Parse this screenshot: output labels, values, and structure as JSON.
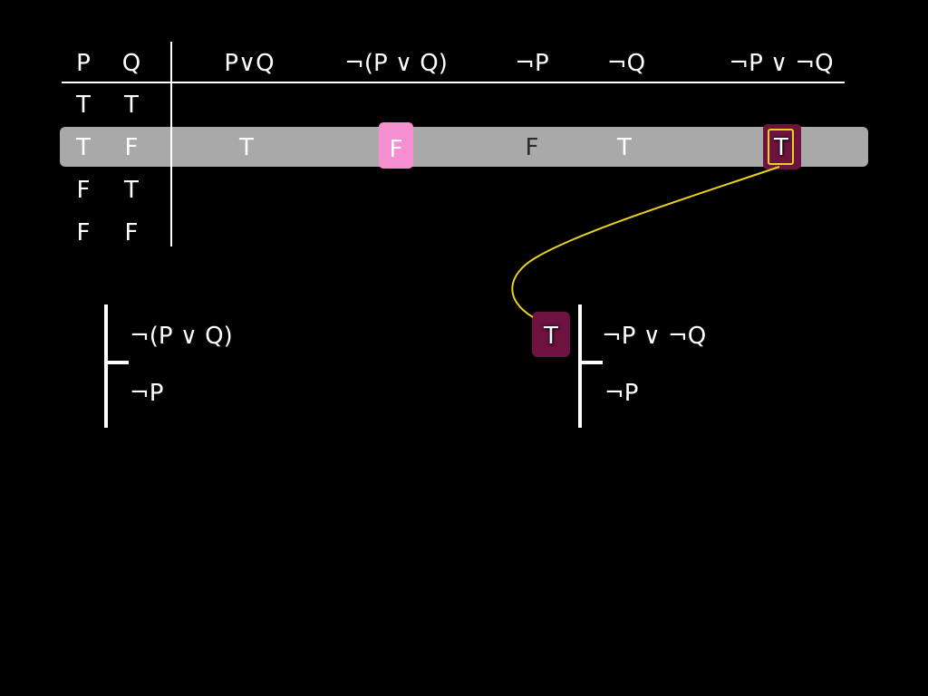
{
  "table": {
    "headers": [
      "P",
      "Q",
      "P∨Q",
      "¬(P ∨ Q)",
      "¬P",
      "¬Q",
      "¬P ∨ ¬Q"
    ],
    "rows": [
      [
        "T",
        "T"
      ],
      [
        "T",
        "F"
      ],
      [
        "F",
        "T"
      ],
      [
        "F",
        "F"
      ]
    ],
    "highlighted_row": {
      "index": 1,
      "values": [
        "T",
        "F",
        "F",
        "T",
        "T"
      ]
    }
  },
  "proof_left": {
    "premise": "¬(P ∨ Q)",
    "conclusion": "¬P"
  },
  "proof_right": {
    "badge": "T",
    "premise": "¬P ∨ ¬Q",
    "conclusion": "¬P"
  },
  "colors": {
    "background": "#000000",
    "row_highlight": "#a9a9a9",
    "pink_cell": "#f58fd0",
    "maroon_cell": "#6e1240",
    "connector": "#e7d21e"
  }
}
